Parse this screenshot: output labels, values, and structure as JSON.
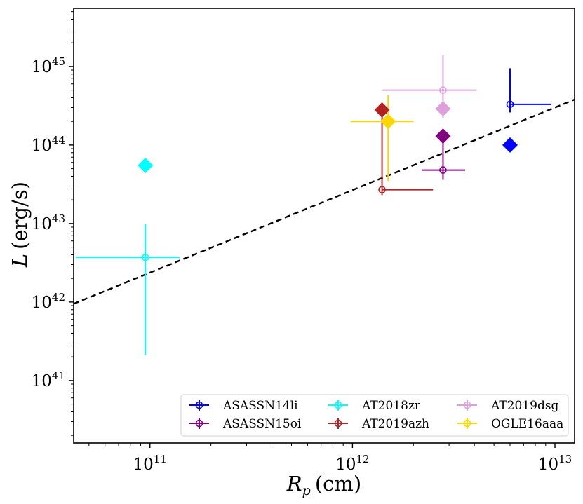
{
  "chart_data": {
    "type": "scatter",
    "xlabel_symbol": "R",
    "xlabel_sub": "p",
    "xlabel_unit": "(cm)",
    "ylabel_symbol": "L",
    "ylabel_unit": "(erg/s)",
    "x_scale": "log",
    "y_scale": "log",
    "xlim": [
      42000000000.0,
      12500000000000.0
    ],
    "ylim": [
      1.6e+40,
      5.5e+45
    ],
    "x_ticks": [
      {
        "value": 100000000000.0,
        "base": "10",
        "exp": "11"
      },
      {
        "value": 1000000000000.0,
        "base": "10",
        "exp": "12"
      },
      {
        "value": 10000000000000.0,
        "base": "10",
        "exp": "13"
      }
    ],
    "y_ticks": [
      {
        "value": 1e+41,
        "base": "10",
        "exp": "41"
      },
      {
        "value": 1e+42,
        "base": "10",
        "exp": "42"
      },
      {
        "value": 1e+43,
        "base": "10",
        "exp": "43"
      },
      {
        "value": 1e+44,
        "base": "10",
        "exp": "44"
      },
      {
        "value": 1e+45,
        "base": "10",
        "exp": "45"
      }
    ],
    "fit_line": {
      "style": "dashed",
      "color": "#000000",
      "points": [
        [
          42000000000.0,
          9.5e+41
        ],
        [
          12500000000000.0,
          3.8e+44
        ]
      ]
    },
    "legend_position": "lower-right",
    "series": [
      {
        "name": "ASASSN14li",
        "color": "#0000ff",
        "x": 6000000000000.0,
        "x_err": [
          6000000000000.0,
          9600000000000.0
        ],
        "y": 3.3e+44,
        "y_err": [
          2.6e+44,
          9.5e+44
        ],
        "diamond": [
          6000000000000.0,
          1e+44
        ]
      },
      {
        "name": "ASASSN15oi",
        "color": "#800080",
        "x": 2800000000000.0,
        "x_err": [
          2200000000000.0,
          3600000000000.0
        ],
        "y": 4.8e+43,
        "y_err": [
          3.6e+43,
          1.2e+44
        ],
        "diamond": [
          2800000000000.0,
          1.3e+44
        ]
      },
      {
        "name": "AT2018zr",
        "color": "#00ffff",
        "x": 95000000000.0,
        "x_err": [
          43000000000.0,
          140000000000.0
        ],
        "y": 3.7e+42,
        "y_err": [
          2.1e+41,
          9.8e+42
        ],
        "diamond": [
          95000000000.0,
          5.5e+43
        ]
      },
      {
        "name": "AT2019azh",
        "color": "#b22222",
        "x": 1400000000000.0,
        "x_err": [
          1400000000000.0,
          2500000000000.0
        ],
        "y": 2.7e+43,
        "y_err": [
          2.3e+43,
          2.7e+44
        ],
        "diamond": [
          1400000000000.0,
          2.8e+44
        ]
      },
      {
        "name": "AT2019dsg",
        "color": "#dda0dd",
        "x": 2800000000000.0,
        "x_err": [
          1400000000000.0,
          4100000000000.0
        ],
        "y": 5e+44,
        "y_err": [
          2.2e+44,
          1.4e+45
        ],
        "diamond": [
          2800000000000.0,
          2.9e+44
        ]
      },
      {
        "name": "OGLE16aaa",
        "color": "#ffd700",
        "x": 1500000000000.0,
        "x_err": [
          980000000000.0,
          2000000000000.0
        ],
        "y": 2e+44,
        "y_err": [
          3.5e+43,
          4.3e+44
        ],
        "diamond": [
          1500000000000.0,
          2e+44
        ]
      }
    ]
  }
}
